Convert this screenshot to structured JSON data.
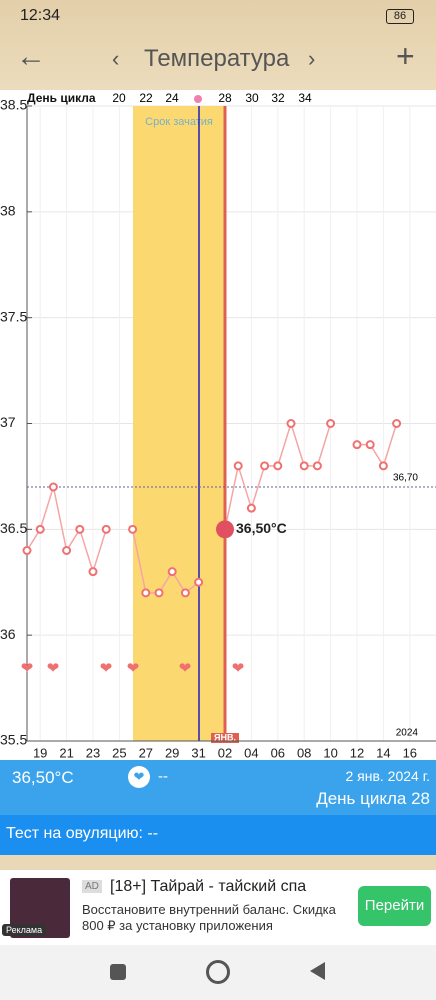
{
  "status": {
    "time": "12:34",
    "battery": "86"
  },
  "toolbar": {
    "title": "Температура"
  },
  "chart_data": {
    "type": "line",
    "categories": [
      null,
      "19",
      null,
      "21",
      null,
      "23",
      null,
      "25",
      null,
      "27",
      null,
      "29",
      null,
      "31",
      null,
      "02",
      null,
      "04",
      null,
      "06",
      null,
      "08",
      null,
      "10",
      null,
      "12",
      null,
      "14",
      null,
      "16"
    ],
    "values": [
      36.4,
      36.5,
      36.7,
      36.4,
      36.5,
      36.3,
      36.5,
      null,
      36.5,
      36.2,
      36.2,
      36.3,
      36.2,
      36.25,
      null,
      36.5,
      36.8,
      36.6,
      36.8,
      36.8,
      37.0,
      36.8,
      36.8,
      37.0,
      null,
      36.9,
      36.9,
      36.8,
      37.0,
      null
    ],
    "value_labels": [
      null,
      null,
      null,
      null,
      null,
      null,
      null,
      null,
      null,
      null,
      null,
      null,
      null,
      null,
      null,
      "36,50°C",
      null,
      null,
      null,
      null,
      null,
      null,
      null,
      null,
      null,
      null,
      null,
      null,
      null,
      null
    ],
    "color": "#f07070",
    "ylim": [
      35.5,
      38.5
    ],
    "yticks": [
      35.5,
      36,
      36.5,
      37,
      37.5,
      38,
      38.5
    ],
    "grid": true,
    "reference_line": {
      "value": 36.7,
      "label": "36,70"
    },
    "fertile_label": "Срок зачатия",
    "month_label": "ЯНВ.",
    "year_label": "2024",
    "cycle_day_label": "День цикла",
    "cycle_days": [
      "20",
      "22",
      "24",
      "28",
      "30",
      "32",
      "34"
    ]
  },
  "info": {
    "temperature": "36,50°C",
    "heart_value": "--",
    "date": "2 янв. 2024 г.",
    "cycle_day": "День цикла 28",
    "test": "Тест на овуляцию: --"
  },
  "ad": {
    "badge": "AD",
    "title": "[18+] Тайрай - тайский спа",
    "text": "Восстановите внутренний баланс. Скидка 800 ₽ за установку приложения",
    "button": "Перейти",
    "label": "Реклама"
  }
}
